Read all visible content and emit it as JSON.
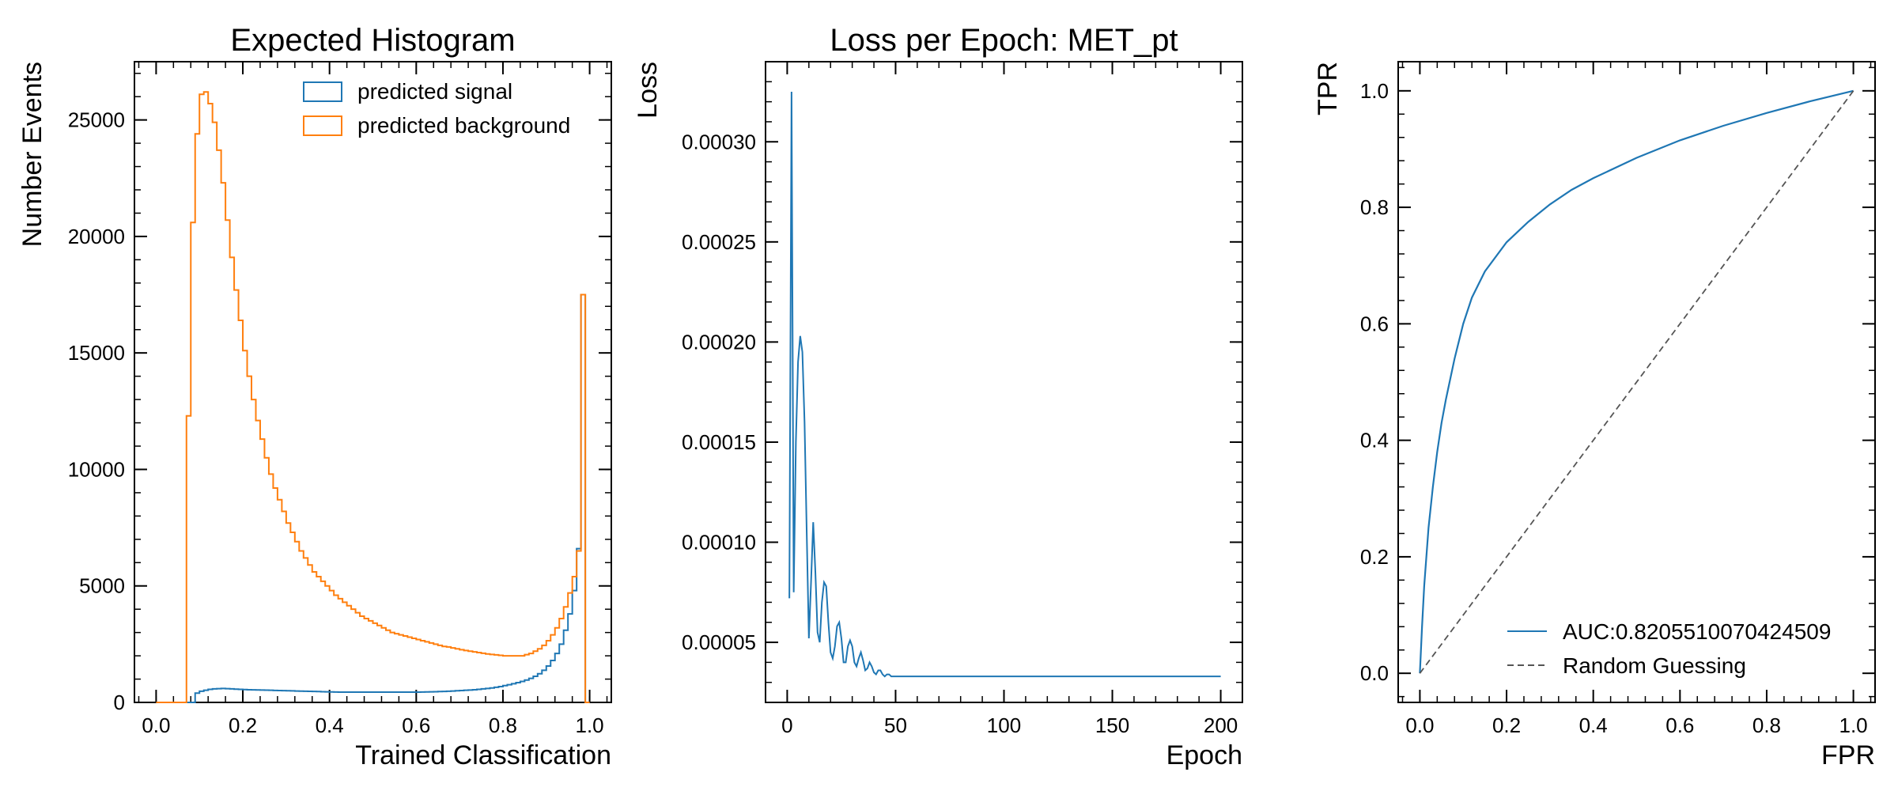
{
  "chart_data": [
    {
      "type": "histogram",
      "title": "Expected Histogram",
      "xlabel": "Trained Classification",
      "ylabel": "Number Events",
      "xlim": [
        -0.05,
        1.05
      ],
      "ylim": [
        0,
        27500
      ],
      "xticks": [
        0.0,
        0.2,
        0.4,
        0.6,
        0.8,
        1.0
      ],
      "xtick_labels": [
        "0.0",
        "0.2",
        "0.4",
        "0.6",
        "0.8",
        "1.0"
      ],
      "yticks": [
        0,
        5000,
        10000,
        15000,
        20000,
        25000
      ],
      "ytick_labels": [
        "0",
        "5000",
        "10000",
        "15000",
        "20000",
        "25000"
      ],
      "legend_position": "top-right",
      "bin_edges_start": 0.0,
      "bin_width": 0.01,
      "series": [
        {
          "name": "predicted signal",
          "color": "#1f77b4",
          "values": [
            0,
            0,
            0,
            0,
            0,
            0,
            0,
            0,
            0,
            400,
            480,
            520,
            560,
            580,
            590,
            600,
            590,
            580,
            570,
            560,
            550,
            545,
            540,
            535,
            530,
            525,
            520,
            515,
            510,
            505,
            500,
            495,
            490,
            485,
            480,
            475,
            470,
            465,
            460,
            455,
            450,
            445,
            440,
            440,
            440,
            440,
            440,
            440,
            440,
            440,
            440,
            440,
            440,
            440,
            440,
            440,
            440,
            440,
            440,
            440,
            440,
            445,
            450,
            455,
            460,
            465,
            470,
            480,
            490,
            500,
            510,
            520,
            530,
            545,
            560,
            580,
            600,
            620,
            650,
            680,
            720,
            760,
            800,
            850,
            900,
            960,
            1030,
            1120,
            1230,
            1380,
            1560,
            1800,
            2100,
            2500,
            3100,
            3800,
            4800,
            6600,
            17500,
            0
          ]
        },
        {
          "name": "predicted background",
          "color": "#ff7f0e",
          "values": [
            0,
            0,
            0,
            0,
            0,
            0,
            0,
            12300,
            20600,
            24400,
            26100,
            26200,
            25700,
            24900,
            23700,
            22300,
            20700,
            19100,
            17700,
            16400,
            15100,
            14000,
            13000,
            12100,
            11300,
            10500,
            9800,
            9200,
            8700,
            8200,
            7700,
            7300,
            6900,
            6500,
            6200,
            5900,
            5600,
            5400,
            5200,
            5000,
            4800,
            4600,
            4450,
            4300,
            4150,
            4000,
            3850,
            3700,
            3600,
            3500,
            3400,
            3300,
            3200,
            3100,
            3000,
            2950,
            2900,
            2850,
            2800,
            2750,
            2700,
            2650,
            2600,
            2550,
            2500,
            2450,
            2400,
            2380,
            2340,
            2300,
            2260,
            2230,
            2200,
            2170,
            2140,
            2110,
            2080,
            2060,
            2040,
            2020,
            2000,
            2000,
            2000,
            2000,
            2000,
            2050,
            2100,
            2200,
            2300,
            2450,
            2650,
            2900,
            3200,
            3600,
            4100,
            4700,
            5400,
            6500,
            17500,
            0
          ]
        }
      ]
    },
    {
      "type": "line",
      "title": "Loss per Epoch: MET_pt",
      "xlabel": "Epoch",
      "ylabel": "Loss",
      "xlim": [
        -10,
        210
      ],
      "ylim": [
        2e-05,
        0.00034
      ],
      "xticks": [
        0,
        50,
        100,
        150,
        200
      ],
      "xtick_labels": [
        "0",
        "50",
        "100",
        "150",
        "200"
      ],
      "yticks": [
        5e-05,
        0.0001,
        0.00015,
        0.0002,
        0.00025,
        0.0003
      ],
      "ytick_labels": [
        "0.00005",
        "0.00010",
        "0.00015",
        "0.00020",
        "0.00025",
        "0.00030"
      ],
      "series": [
        {
          "color": "#1f77b4",
          "x": [
            1,
            2,
            3,
            4,
            5,
            6,
            7,
            8,
            9,
            10,
            11,
            12,
            13,
            14,
            15,
            16,
            17,
            18,
            19,
            20,
            21,
            22,
            23,
            24,
            25,
            26,
            27,
            28,
            29,
            30,
            31,
            32,
            33,
            34,
            35,
            36,
            37,
            38,
            39,
            40,
            41,
            42,
            43,
            44,
            45,
            46,
            47,
            48,
            49,
            50,
            55,
            60,
            70,
            80,
            100,
            120,
            140,
            160,
            180,
            200
          ],
          "y": [
            7.2e-05,
            0.000325,
            7.5e-05,
            0.00015,
            0.00019,
            0.000203,
            0.000195,
            0.00016,
            0.000105,
            5.2e-05,
            8e-05,
            0.00011,
            8.5e-05,
            5.5e-05,
            5e-05,
            7e-05,
            8e-05,
            7.8e-05,
            6e-05,
            4.5e-05,
            4.2e-05,
            4.8e-05,
            5.8e-05,
            6e-05,
            5.2e-05,
            4e-05,
            4e-05,
            4.8e-05,
            5.1e-05,
            4.8e-05,
            4e-05,
            3.8e-05,
            4.2e-05,
            4.5e-05,
            4.1e-05,
            3.6e-05,
            3.7e-05,
            4e-05,
            3.8e-05,
            3.5e-05,
            3.4e-05,
            3.6e-05,
            3.6e-05,
            3.4e-05,
            3.3e-05,
            3.4e-05,
            3.4e-05,
            3.3e-05,
            3.3e-05,
            3.3e-05,
            3.3e-05,
            3.3e-05,
            3.3e-05,
            3.3e-05,
            3.3e-05,
            3.3e-05,
            3.3e-05,
            3.3e-05,
            3.3e-05,
            3.3e-05
          ]
        }
      ]
    },
    {
      "type": "line",
      "title": "",
      "xlabel": "FPR",
      "ylabel": "TPR",
      "xlim": [
        -0.05,
        1.05
      ],
      "ylim": [
        -0.05,
        1.05
      ],
      "xticks": [
        0.0,
        0.2,
        0.4,
        0.6,
        0.8,
        1.0
      ],
      "xtick_labels": [
        "0.0",
        "0.2",
        "0.4",
        "0.6",
        "0.8",
        "1.0"
      ],
      "yticks": [
        0.0,
        0.2,
        0.4,
        0.6,
        0.8,
        1.0
      ],
      "ytick_labels": [
        "0.0",
        "0.2",
        "0.4",
        "0.6",
        "0.8",
        "1.0"
      ],
      "legend_position": "bottom-right",
      "series": [
        {
          "name": "AUC:0.8205510070424509",
          "color": "#1f77b4",
          "style": "solid",
          "x": [
            0.0,
            0.005,
            0.01,
            0.02,
            0.03,
            0.04,
            0.05,
            0.06,
            0.08,
            0.1,
            0.12,
            0.15,
            0.2,
            0.25,
            0.3,
            0.35,
            0.4,
            0.5,
            0.6,
            0.7,
            0.8,
            0.9,
            1.0
          ],
          "y": [
            0.0,
            0.08,
            0.15,
            0.25,
            0.32,
            0.38,
            0.43,
            0.47,
            0.54,
            0.6,
            0.645,
            0.69,
            0.74,
            0.775,
            0.805,
            0.83,
            0.85,
            0.885,
            0.915,
            0.94,
            0.962,
            0.982,
            1.0
          ]
        },
        {
          "name": "Random Guessing",
          "color": "#555555",
          "style": "dashed",
          "x": [
            0.0,
            1.0
          ],
          "y": [
            0.0,
            1.0
          ]
        }
      ]
    }
  ]
}
